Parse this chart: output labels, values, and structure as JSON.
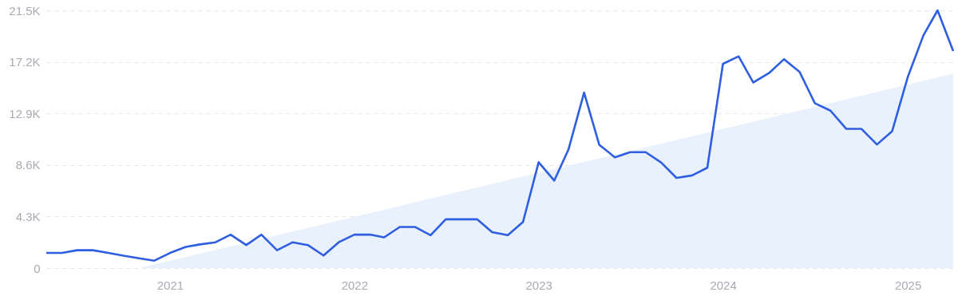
{
  "chart_data": {
    "type": "line",
    "xlim": [
      "2020-05",
      "2025-04"
    ],
    "xticks": [
      "2021",
      "2022",
      "2023",
      "2024",
      "2025"
    ],
    "ylim": [
      0,
      21500
    ],
    "yticks": [
      {
        "value": 0,
        "label": "0"
      },
      {
        "value": 4300,
        "label": "4.3K"
      },
      {
        "value": 8600,
        "label": "8.6K"
      },
      {
        "value": 12900,
        "label": "12.9K"
      },
      {
        "value": 17200,
        "label": "17.2K"
      },
      {
        "value": 21500,
        "label": "21.5K"
      }
    ],
    "grid": "y",
    "marker": "none",
    "line_style": "solid",
    "series": [
      {
        "type": "area",
        "color": "#e4eefb",
        "x": [
          "2020-11",
          "2025-04"
        ],
        "values": [
          0,
          16200
        ]
      },
      {
        "color": "#2f5fe0",
        "x": [
          "2020-05",
          "2020-06",
          "2020-07",
          "2020-08",
          "2020-09",
          "2020-10",
          "2020-11",
          "2020-12",
          "2021-01",
          "2021-02",
          "2021-03",
          "2021-04",
          "2021-05",
          "2021-06",
          "2021-07",
          "2021-08",
          "2021-09",
          "2021-10",
          "2021-11",
          "2021-12",
          "2022-01",
          "2022-02",
          "2022-03",
          "2022-04",
          "2022-05",
          "2022-06",
          "2022-07",
          "2022-08",
          "2022-09",
          "2022-10",
          "2022-11",
          "2022-12",
          "2023-01",
          "2023-02",
          "2023-03",
          "2023-04",
          "2023-05",
          "2023-06",
          "2023-07",
          "2023-08",
          "2023-09",
          "2023-10",
          "2023-11",
          "2023-12",
          "2024-01",
          "2024-02",
          "2024-03",
          "2024-04",
          "2024-05",
          "2024-06",
          "2024-07",
          "2024-08",
          "2024-09",
          "2024-10",
          "2024-11",
          "2024-12",
          "2025-01",
          "2025-02",
          "2025-03",
          "2025-04"
        ],
        "values": [
          1260,
          1260,
          1490,
          1490,
          1260,
          1030,
          820,
          620,
          1260,
          1760,
          1970,
          2150,
          2790,
          1920,
          2790,
          1490,
          2150,
          1920,
          1050,
          2150,
          2790,
          2790,
          2560,
          3430,
          3430,
          2740,
          4070,
          4070,
          4070,
          3000,
          2740,
          3840,
          8830,
          7300,
          9880,
          14640,
          10290,
          9240,
          9670,
          9670,
          8800,
          7520,
          7730,
          8370,
          17040,
          17660,
          15480,
          16260,
          17430,
          16350,
          13750,
          13130,
          11620,
          11620,
          10310,
          11410,
          15940,
          19410,
          21500,
          18110
        ]
      }
    ]
  }
}
